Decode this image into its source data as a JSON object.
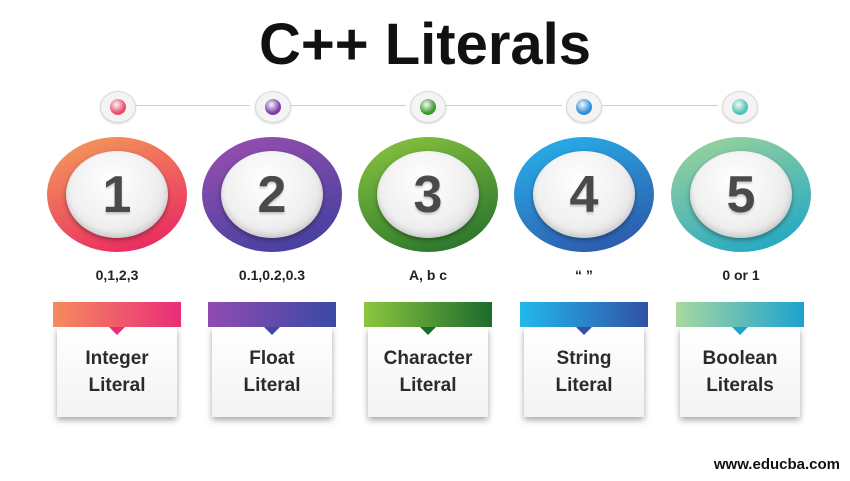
{
  "title": "C++ Literals",
  "items": [
    {
      "number": "1",
      "example": "0,1,2,3",
      "label_line1": "Integer",
      "label_line2": "Literal",
      "dot_color": "#ef4b6a",
      "ring_from": "#f4a05a",
      "ring_to": "#e81d62",
      "bar_from": "#f58c5c",
      "bar_to": "#e92c78"
    },
    {
      "number": "2",
      "example": "0.1,0.2,0.3",
      "label_line1": "Float",
      "label_line2": "Literal",
      "dot_color": "#7a3ea8",
      "ring_from": "#9c4fb0",
      "ring_to": "#3b3f9e",
      "bar_from": "#8f4bb1",
      "bar_to": "#3a4aa4"
    },
    {
      "number": "3",
      "example": "A, b c",
      "label_line1": "Character",
      "label_line2": "Literal",
      "dot_color": "#3c9a2e",
      "ring_from": "#8dc63f",
      "ring_to": "#1f6d2a",
      "bar_from": "#8dc63f",
      "bar_to": "#1c6b2c"
    },
    {
      "number": "4",
      "example": "“  ”",
      "label_line1": "String",
      "label_line2": "Literal",
      "dot_color": "#2f8fdb",
      "ring_from": "#27b6ec",
      "ring_to": "#2f4fa6",
      "bar_from": "#22b9ec",
      "bar_to": "#3051a6"
    },
    {
      "number": "5",
      "example": "0 or 1",
      "label_line1": "Boolean",
      "label_line2": "Literals",
      "dot_color": "#4cc5b6",
      "ring_from": "#a2d59a",
      "ring_to": "#17a3c7",
      "bar_from": "#a8d8a0",
      "bar_to": "#1ca2cf"
    }
  ],
  "footer": "www.educba.com"
}
